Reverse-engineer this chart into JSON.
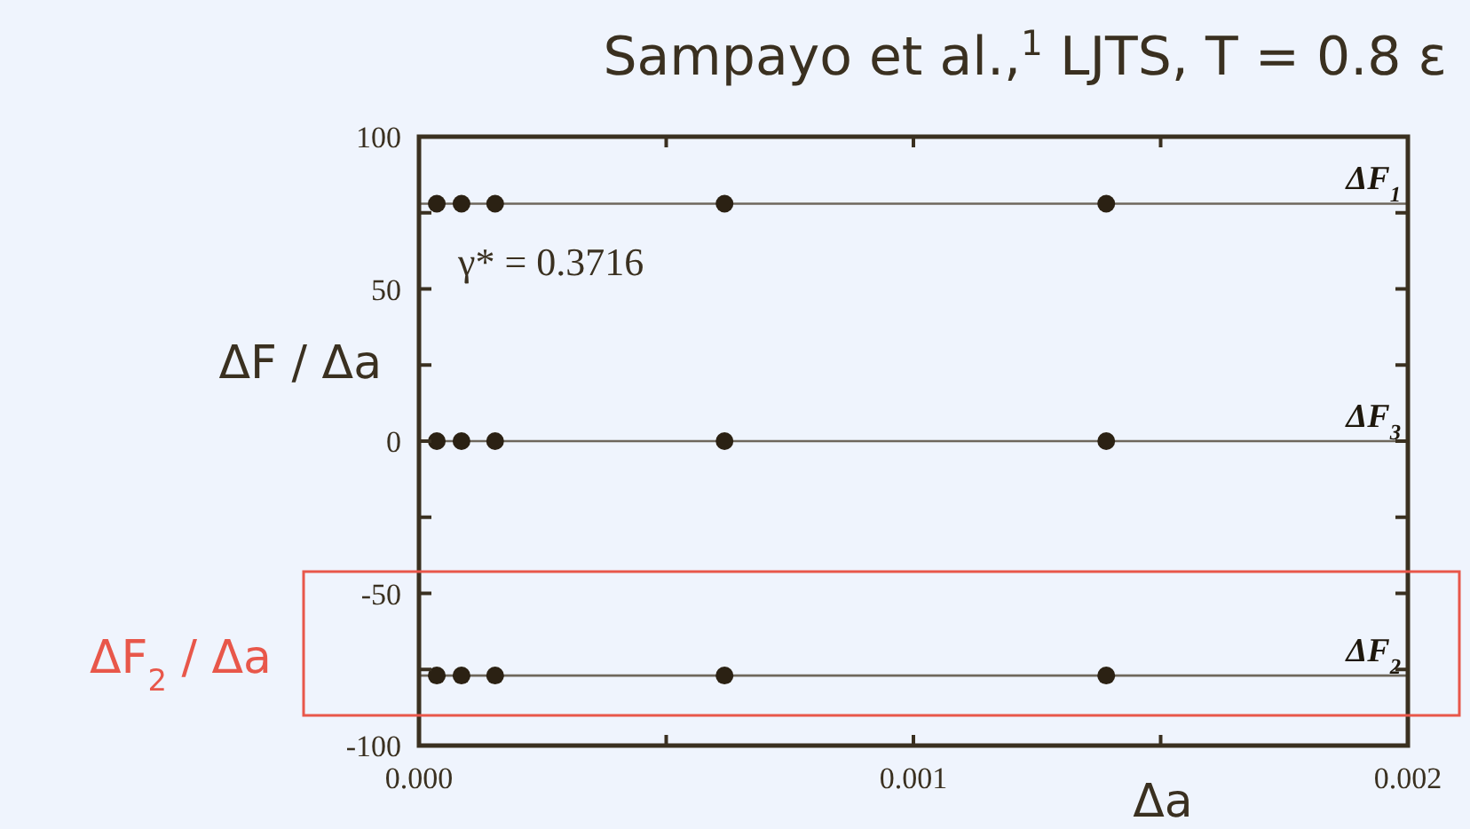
{
  "chart_data": {
    "type": "scatter",
    "title": "Sampayo et al.,$^{1}$ LJTS, T = 0.8 ε",
    "xlabel": "Δa",
    "ylabel": "ΔF / Δa",
    "annotations": [
      "γ* = 0.3716",
      "ΔF$_{2}$ / Δa"
    ],
    "xlim": [
      0,
      0.002
    ],
    "xticks": [
      {
        "value": 0,
        "label": "0.000"
      },
      {
        "value": 0.0005,
        "label": null
      },
      {
        "value": 0.001,
        "label": "0.001"
      },
      {
        "value": 0.0015,
        "label": null
      },
      {
        "value": 0.002,
        "label": "0.002"
      }
    ],
    "ylim": [
      -100,
      100
    ],
    "yticks": [
      -100,
      {
        "value": -75,
        "label": null
      },
      -50,
      {
        "value": -25,
        "label": null
      },
      0,
      {
        "value": 25,
        "label": null
      },
      50,
      {
        "value": 75,
        "label": null
      },
      100
    ],
    "marker": "circle",
    "grid": false,
    "series": [
      {
        "color": "#2b2113",
        "x": [
          3.6e-05,
          8.6e-05,
          0.000154,
          0.000618,
          0.00139
        ],
        "values": [
          78,
          78,
          78,
          78,
          78
        ]
      },
      {
        "color": "#2b2113",
        "x": [
          3.6e-05,
          8.6e-05,
          0.000154,
          0.000618,
          0.00139
        ],
        "values": [
          0,
          0,
          0,
          0,
          0
        ]
      },
      {
        "color": "#2b2113",
        "x": [
          3.6e-05,
          8.6e-05,
          0.000154,
          0.000618,
          0.00139
        ],
        "values": [
          -77,
          -77,
          -77,
          -77,
          -77
        ]
      }
    ],
    "ref_lines": [
      {
        "axis": "y",
        "value": 78,
        "label": "ΔF$_{1}$",
        "color": "#6e675c"
      },
      {
        "axis": "y",
        "value": 0,
        "label": "ΔF$_{3}$",
        "color": "#6e675c"
      },
      {
        "axis": "y",
        "value": -77,
        "label": "ΔF$_{2}$",
        "color": "#6e675c"
      }
    ]
  }
}
